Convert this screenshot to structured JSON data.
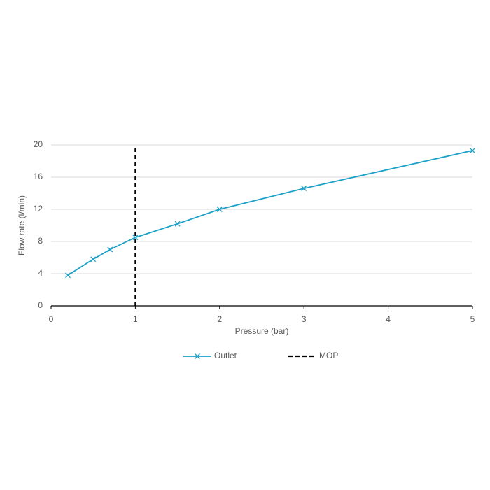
{
  "chart_data": {
    "type": "line",
    "xlabel": "Pressure (bar)",
    "ylabel": "Flow rate (l/min)",
    "xlim": [
      0,
      5
    ],
    "ylim": [
      0,
      20
    ],
    "xticks": [
      0,
      1,
      2,
      3,
      4,
      5
    ],
    "yticks": [
      0,
      4,
      8,
      12,
      16,
      20
    ],
    "grid": true,
    "legend": "bottom",
    "series": [
      {
        "name": "Outlet",
        "color": "#1ba1c8",
        "marker": "x",
        "dashed": false,
        "x": [
          0.2,
          0.5,
          0.7,
          1,
          1.5,
          2,
          3,
          5
        ],
        "values": [
          3.8,
          5.8,
          7.0,
          8.5,
          10.2,
          12.0,
          14.6,
          19.3
        ]
      },
      {
        "name": "MOP",
        "color": "#000000",
        "marker": null,
        "dashed": true,
        "x": [
          1,
          1
        ],
        "values": [
          0,
          20
        ]
      }
    ]
  }
}
